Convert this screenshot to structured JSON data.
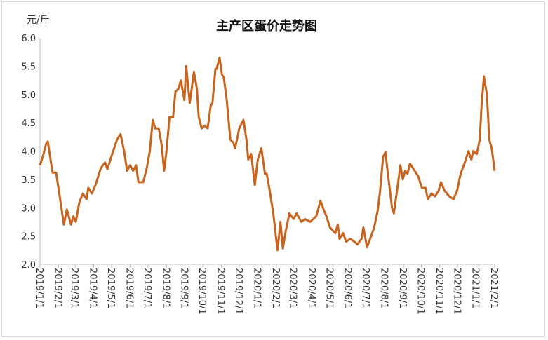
{
  "chart_data": {
    "type": "line",
    "title": "主产区蛋价走势图",
    "y_label": "元/斤",
    "x": [
      "2019/1/1",
      "2019/1/7",
      "2019/1/11",
      "2019/1/14",
      "2019/1/22",
      "2019/1/28",
      "2019/2/3",
      "2019/2/10",
      "2019/2/15",
      "2019/2/22",
      "2019/2/26",
      "2019/3/2",
      "2019/3/8",
      "2019/3/14",
      "2019/3/20",
      "2019/3/23",
      "2019/3/29",
      "2019/4/4",
      "2019/4/13",
      "2019/4/20",
      "2019/4/24",
      "2019/5/2",
      "2019/5/10",
      "2019/5/16",
      "2019/5/22",
      "2019/5/27",
      "2019/6/1",
      "2019/6/6",
      "2019/6/11",
      "2019/6/15",
      "2019/6/23",
      "2019/6/29",
      "2019/7/4",
      "2019/7/9",
      "2019/7/13",
      "2019/7/19",
      "2019/7/24",
      "2019/7/28",
      "2019/8/1",
      "2019/8/6",
      "2019/8/12",
      "2019/8/16",
      "2019/8/21",
      "2019/8/25",
      "2019/8/31",
      "2019/9/3",
      "2019/9/9",
      "2019/9/16",
      "2019/9/21",
      "2019/9/24",
      "2019/9/29",
      "2019/10/4",
      "2019/10/9",
      "2019/10/14",
      "2019/10/17",
      "2019/10/22",
      "2019/10/24",
      "2019/10/29",
      "2019/11/2",
      "2019/11/5",
      "2019/11/10",
      "2019/11/16",
      "2019/11/21",
      "2019/11/24",
      "2019/12/1",
      "2019/12/8",
      "2019/12/13",
      "2019/12/16",
      "2019/12/21",
      "2019/12/27",
      "2020/1/1",
      "2020/1/7",
      "2020/1/13",
      "2020/1/16",
      "2020/1/21",
      "2020/1/27",
      "2020/2/3",
      "2020/2/8",
      "2020/2/12",
      "2020/2/17",
      "2020/2/23",
      "2020/3/1",
      "2020/3/6",
      "2020/3/14",
      "2020/3/20",
      "2020/3/29",
      "2020/4/8",
      "2020/4/15",
      "2020/4/21",
      "2020/4/25",
      "2020/5/1",
      "2020/5/10",
      "2020/5/14",
      "2020/5/17",
      "2020/5/23",
      "2020/5/28",
      "2020/6/4",
      "2020/6/11",
      "2020/6/16",
      "2020/6/23",
      "2020/6/26",
      "2020/7/2",
      "2020/7/9",
      "2020/7/14",
      "2020/7/20",
      "2020/7/24",
      "2020/7/29",
      "2020/8/2",
      "2020/8/6",
      "2020/8/13",
      "2020/8/16",
      "2020/8/22",
      "2020/8/27",
      "2020/8/31",
      "2020/9/4",
      "2020/9/8",
      "2020/9/12",
      "2020/9/20",
      "2020/9/26",
      "2020/10/2",
      "2020/10/8",
      "2020/10/12",
      "2020/10/18",
      "2020/10/24",
      "2020/10/30",
      "2020/11/3",
      "2020/11/9",
      "2020/11/17",
      "2020/11/24",
      "2020/11/30",
      "2020/12/6",
      "2020/12/13",
      "2020/12/19",
      "2020/12/24",
      "2020/12/27",
      "2021/1/2",
      "2021/1/7",
      "2021/1/10",
      "2021/1/14",
      "2021/1/19",
      "2021/1/23",
      "2021/1/27",
      "2021/2/1"
    ],
    "series": [
      {
        "color": "#c8641e",
        "values": [
          3.75,
          3.95,
          4.12,
          4.17,
          3.62,
          3.62,
          3.2,
          2.7,
          2.97,
          2.7,
          2.85,
          2.75,
          3.1,
          3.25,
          3.15,
          3.35,
          3.25,
          3.4,
          3.7,
          3.8,
          3.68,
          3.95,
          4.2,
          4.3,
          4.0,
          3.65,
          3.75,
          3.65,
          3.75,
          3.45,
          3.45,
          3.7,
          4.0,
          4.55,
          4.4,
          4.4,
          4.1,
          3.65,
          4.0,
          4.6,
          4.6,
          5.05,
          5.1,
          5.25,
          4.9,
          5.5,
          4.85,
          5.4,
          5.1,
          4.6,
          4.4,
          4.45,
          4.4,
          4.8,
          4.85,
          5.45,
          5.45,
          5.65,
          5.35,
          5.3,
          4.9,
          4.2,
          4.15,
          4.05,
          4.4,
          4.55,
          4.2,
          3.85,
          3.95,
          3.4,
          3.85,
          4.05,
          3.6,
          3.6,
          3.3,
          2.9,
          2.25,
          2.75,
          2.28,
          2.6,
          2.9,
          2.8,
          2.9,
          2.75,
          2.8,
          2.75,
          2.85,
          3.12,
          2.95,
          2.85,
          2.65,
          2.55,
          2.7,
          2.45,
          2.55,
          2.4,
          2.45,
          2.4,
          2.35,
          2.45,
          2.65,
          2.3,
          2.5,
          2.65,
          2.95,
          3.3,
          3.9,
          3.98,
          3.6,
          3.0,
          2.9,
          3.35,
          3.75,
          3.5,
          3.65,
          3.6,
          3.78,
          3.65,
          3.55,
          3.35,
          3.35,
          3.15,
          3.25,
          3.2,
          3.3,
          3.45,
          3.3,
          3.2,
          3.15,
          3.3,
          3.6,
          3.8,
          4.0,
          3.85,
          4.0,
          3.95,
          4.2,
          4.8,
          5.32,
          5.0,
          4.2,
          4.05,
          3.65
        ]
      }
    ],
    "xlim": [
      "2019/1/1",
      "2021/2/1"
    ],
    "xticks": [
      "2019/1/1",
      "2019/2/1",
      "2019/3/1",
      "2019/4/1",
      "2019/5/1",
      "2019/6/1",
      "2019/7/1",
      "2019/8/1",
      "2019/9/1",
      "2019/10/1",
      "2019/11/1",
      "2019/12/1",
      "2020/1/1",
      "2020/2/1",
      "2020/3/1",
      "2020/4/1",
      "2020/5/1",
      "2020/6/1",
      "2020/7/1",
      "2020/8/1",
      "2020/9/1",
      "2020/10/1",
      "2020/11/1",
      "2020/12/1",
      "2021/1/1",
      "2021/2/1"
    ],
    "ylim": [
      2,
      6
    ],
    "yticks": [
      {
        "value": 2,
        "label": "2.0"
      },
      2.5,
      {
        "value": 3,
        "label": "3.0"
      },
      3.5,
      {
        "value": 4,
        "label": "4.0"
      },
      4.5,
      {
        "value": 5,
        "label": "5.0"
      },
      5.5,
      {
        "value": 6,
        "label": "6.0"
      }
    ]
  }
}
